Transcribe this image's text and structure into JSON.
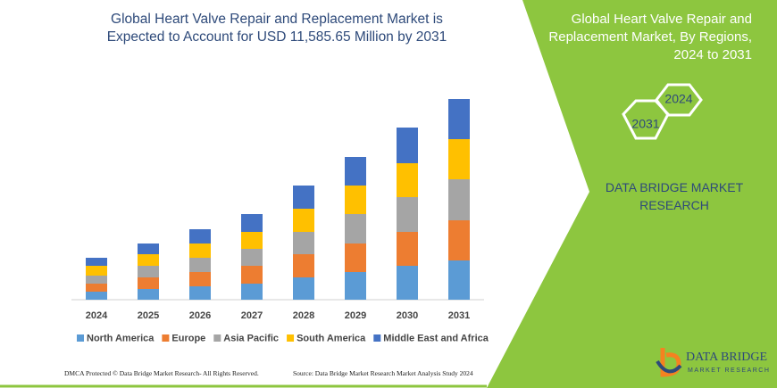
{
  "chart_data": {
    "type": "bar",
    "stacked": true,
    "title": "Global Heart Valve Repair and Replacement Market is Expected to Account for USD 11,585.65 Million by 2031",
    "categories": [
      "2024",
      "2025",
      "2026",
      "2027",
      "2028",
      "2029",
      "2030",
      "2031"
    ],
    "series": [
      {
        "name": "North America",
        "color": "#5b9bd5",
        "values": [
          9,
          12,
          15,
          18,
          25,
          31,
          38,
          44
        ]
      },
      {
        "name": "Europe",
        "color": "#ed7d31",
        "values": [
          9,
          13,
          16,
          20,
          26,
          32,
          38,
          45
        ]
      },
      {
        "name": "Asia Pacific",
        "color": "#a5a5a5",
        "values": [
          9,
          13,
          16,
          19,
          25,
          33,
          39,
          46
        ]
      },
      {
        "name": "South America",
        "color": "#ffc000",
        "values": [
          11,
          13,
          16,
          19,
          26,
          32,
          38,
          45
        ]
      },
      {
        "name": "Middle East and Africa",
        "color": "#4472c4",
        "values": [
          9,
          12,
          16,
          20,
          26,
          32,
          40,
          45
        ]
      }
    ]
  },
  "side_panel": {
    "title": "Global Heart Valve Repair and Replacement Market, By Regions, 2024 to 2031",
    "hexagons": [
      "2024",
      "2031"
    ],
    "brand": "DATA BRIDGE MARKET RESEARCH"
  },
  "footer": {
    "left": "DMCA Protected © Data Bridge Market Research- All Rights Reserved.",
    "right": "Source: Data Bridge Market Research Market Analysis Study 2024"
  },
  "logo": {
    "name": "DATA BRIDGE",
    "tagline": "MARKET RESEARCH"
  }
}
